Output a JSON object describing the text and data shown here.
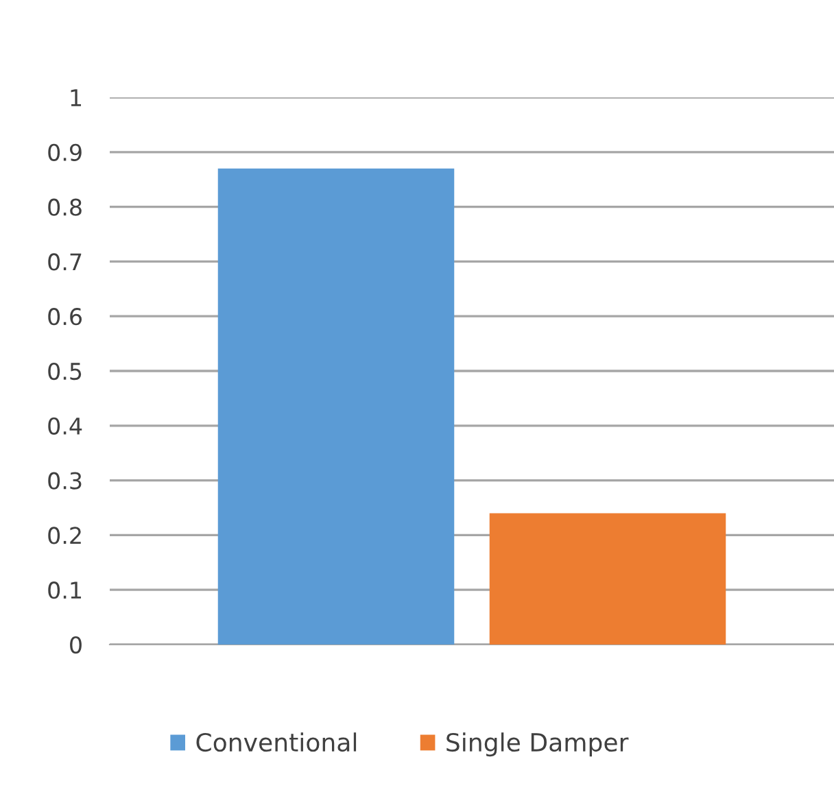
{
  "chart_data": {
    "type": "bar",
    "categories": [
      null
    ],
    "series": [
      {
        "name": "Conventional",
        "color": "#5b9bd5",
        "values": [
          0.87
        ]
      },
      {
        "name": "Single Damper",
        "color": "#ed7d31",
        "values": [
          0.24
        ]
      }
    ],
    "ylim": [
      0,
      1
    ],
    "yticks": [
      0,
      0.1,
      0.2,
      0.3,
      0.4,
      0.5,
      0.6,
      0.7,
      0.8,
      0.9,
      1
    ],
    "grid": "y",
    "legend": "bottom"
  }
}
